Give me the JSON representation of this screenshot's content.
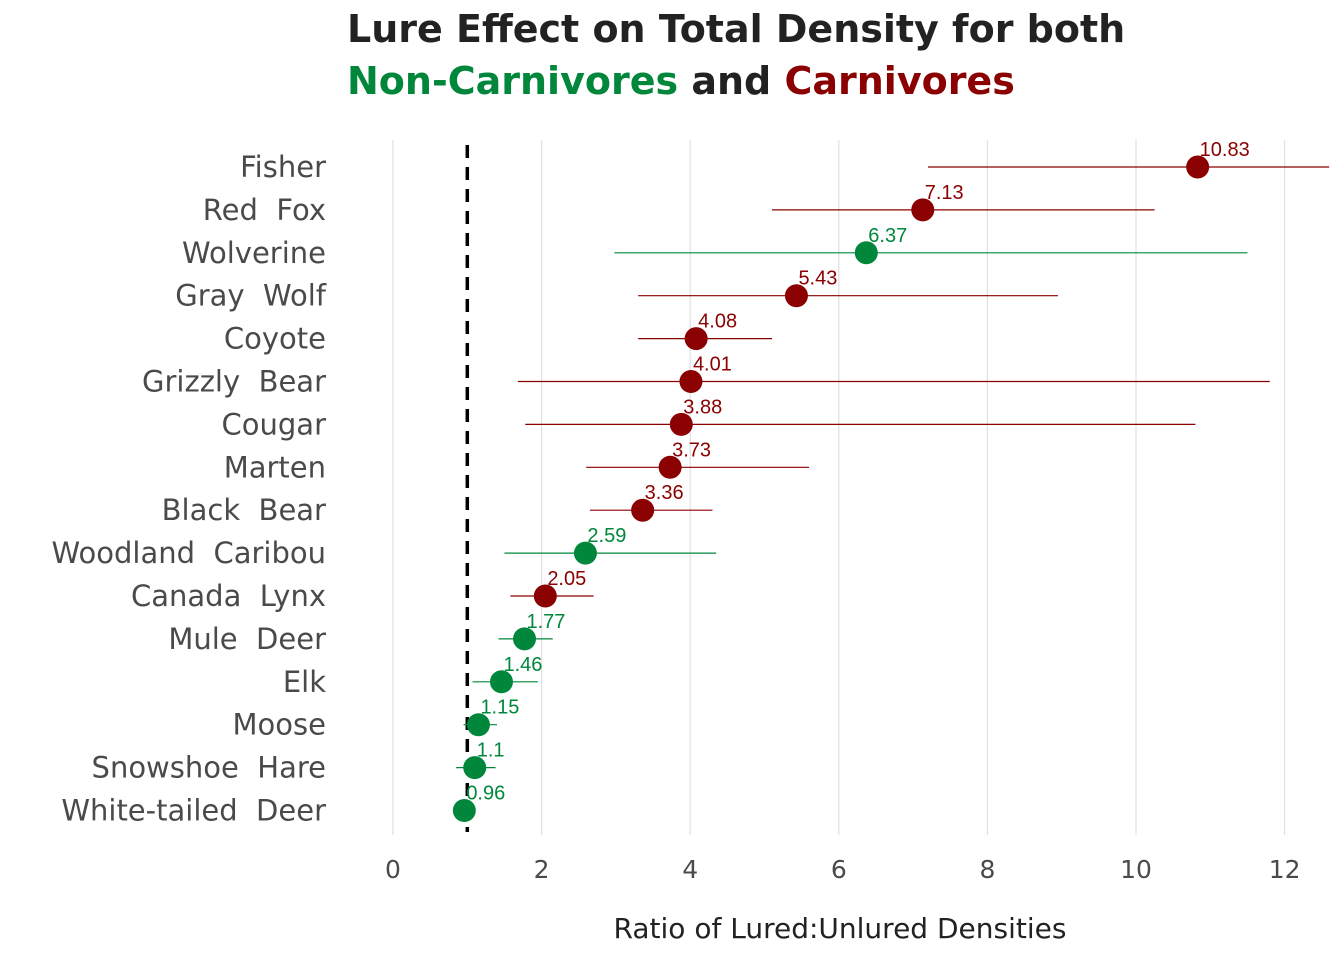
{
  "title": {
    "line1": "Lure Effect on Total Density for both",
    "group_noncarn": "Non-Carnivores",
    "conj": "and",
    "group_carn": "Carnivores"
  },
  "colors": {
    "non_carnivore": "#00873C",
    "carnivore": "#8B0000",
    "reference_line": "#000000",
    "grid": "#e0e0e0"
  },
  "chart_data": {
    "type": "scatter",
    "orientation": "horizontal dot plot with error bars",
    "xlabel": "Ratio of Lured:Unlured Densities",
    "xlim": [
      0,
      12.7
    ],
    "xticks": [
      0,
      2,
      4,
      6,
      8,
      10,
      12
    ],
    "reference_line_x": 1,
    "grid": "vertical major",
    "legend": "none (groups indicated by title colors)",
    "points": [
      {
        "species": "Fisher",
        "value": 10.83,
        "lower": 7.2,
        "upper": 12.6,
        "group": "carnivore"
      },
      {
        "species": "Red  Fox",
        "value": 7.13,
        "lower": 5.1,
        "upper": 10.25,
        "group": "carnivore"
      },
      {
        "species": "Wolverine",
        "value": 6.37,
        "lower": 2.98,
        "upper": 11.5,
        "group": "non_carnivore"
      },
      {
        "species": "Gray  Wolf",
        "value": 5.43,
        "lower": 3.3,
        "upper": 8.95,
        "group": "carnivore"
      },
      {
        "species": "Coyote",
        "value": 4.08,
        "lower": 3.3,
        "upper": 5.1,
        "group": "carnivore"
      },
      {
        "species": "Grizzly  Bear",
        "value": 4.01,
        "lower": 1.68,
        "upper": 11.8,
        "group": "carnivore"
      },
      {
        "species": "Cougar",
        "value": 3.88,
        "lower": 1.78,
        "upper": 10.8,
        "group": "carnivore"
      },
      {
        "species": "Marten",
        "value": 3.73,
        "lower": 2.6,
        "upper": 5.6,
        "group": "carnivore"
      },
      {
        "species": "Black  Bear",
        "value": 3.36,
        "lower": 2.65,
        "upper": 4.3,
        "group": "carnivore"
      },
      {
        "species": "Woodland  Caribou",
        "value": 2.59,
        "lower": 1.5,
        "upper": 4.35,
        "group": "non_carnivore"
      },
      {
        "species": "Canada  Lynx",
        "value": 2.05,
        "lower": 1.58,
        "upper": 2.7,
        "group": "carnivore"
      },
      {
        "species": "Mule  Deer",
        "value": 1.77,
        "lower": 1.42,
        "upper": 2.15,
        "group": "non_carnivore"
      },
      {
        "species": "Elk",
        "value": 1.46,
        "lower": 1.07,
        "upper": 1.95,
        "group": "non_carnivore"
      },
      {
        "species": "Moose",
        "value": 1.15,
        "lower": 0.95,
        "upper": 1.4,
        "group": "non_carnivore"
      },
      {
        "species": "Snowshoe  Hare",
        "value": 1.1,
        "lower": 0.85,
        "upper": 1.38,
        "group": "non_carnivore"
      },
      {
        "species": "White-tailed  Deer",
        "value": 0.96,
        "lower": 0.9,
        "upper": 1.03,
        "group": "non_carnivore"
      }
    ]
  }
}
